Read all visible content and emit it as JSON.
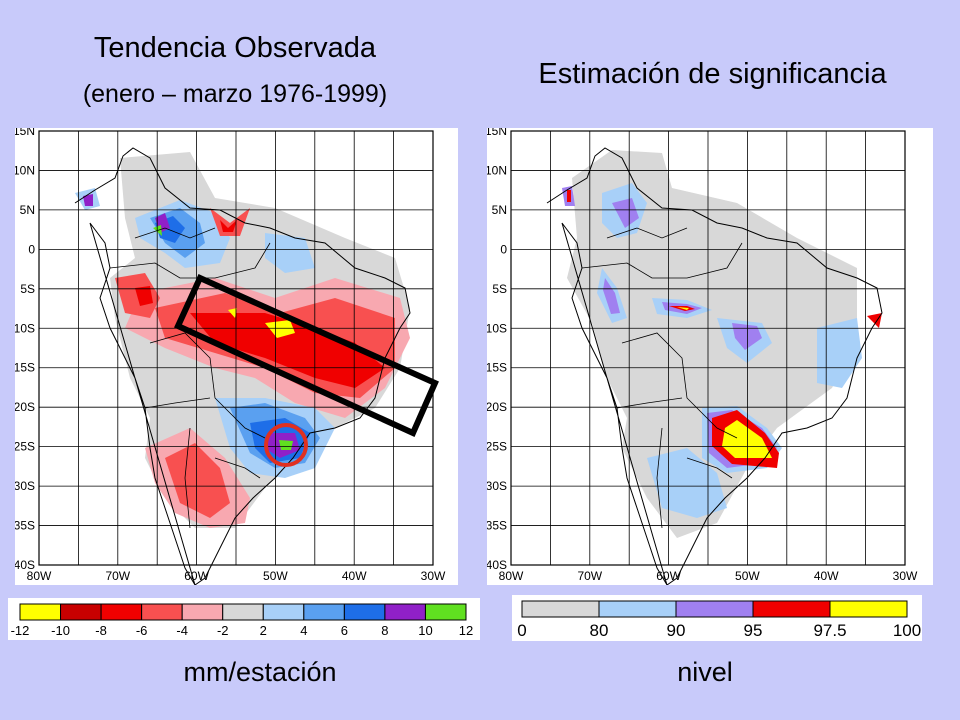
{
  "left": {
    "title": "Tendencia Observada",
    "subtitle": "(enero – marzo 1976-1999)",
    "lat_labels": [
      "15N",
      "10N",
      "5N",
      "0",
      "5S",
      "10S",
      "15S",
      "20S",
      "25S",
      "30S",
      "35S",
      "40S"
    ],
    "lon_labels": [
      "80W",
      "70W",
      "60W",
      "50W",
      "40W",
      "30W"
    ],
    "legend_ticks": [
      "-12",
      "-10",
      "-8",
      "-6",
      "-4",
      "-2",
      "2",
      "4",
      "6",
      "8",
      "10",
      "12"
    ],
    "legend_colors": [
      "#ffff00",
      "#c80000",
      "#f00000",
      "#f85050",
      "#f8a8b0",
      "#d8d8d8",
      "#a8d0f8",
      "#5aa0f0",
      "#1e6ee8",
      "#9020c8",
      "#60e020"
    ],
    "unit": "mm/estación"
  },
  "right": {
    "title": "Estimación de significancia",
    "lat_labels": [
      "15N",
      "10N",
      "5N",
      "0",
      "5S",
      "10S",
      "15S",
      "20S",
      "25S",
      "30S",
      "35S",
      "40S"
    ],
    "lon_labels": [
      "80W",
      "70W",
      "60W",
      "50W",
      "40W",
      "30W"
    ],
    "legend_ticks": [
      "0",
      "80",
      "90",
      "95",
      "97.5",
      "100"
    ],
    "legend_colors": [
      "#d8d8d8",
      "#a8d0f8",
      "#a080f0",
      "#f00000",
      "#ffff00"
    ],
    "unit": "nivel"
  },
  "annotations": {
    "box_color": "#000000",
    "circle_color": "#e03020"
  }
}
